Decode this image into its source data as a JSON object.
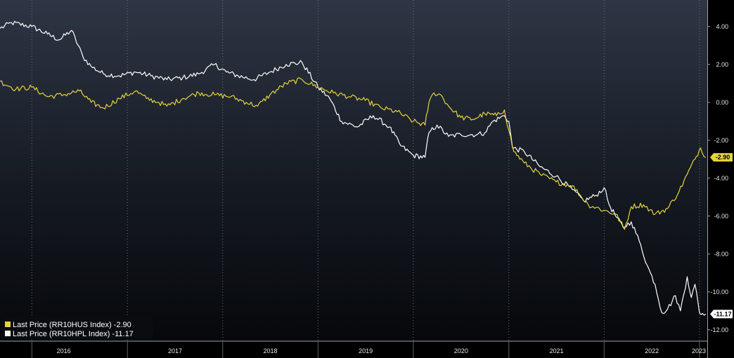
{
  "chart_data": {
    "type": "line",
    "x_axis": {
      "type": "date",
      "range": [
        "2015-09-01",
        "2023-01-31"
      ],
      "tick_labels": [
        "2016",
        "2017",
        "2018",
        "2019",
        "2020",
        "2021",
        "2022",
        "2023"
      ]
    },
    "y_axis": {
      "side": "right",
      "range": [
        -12.6,
        5.4
      ],
      "tick_values": [
        4,
        2,
        0,
        -2,
        -4,
        -6,
        -8,
        -10,
        -12
      ],
      "tick_labels": [
        "4.00",
        "2.00",
        "0.00",
        "-2.00",
        "-4.00",
        "-6.00",
        "-8.00",
        "-10.00",
        "-12.00"
      ]
    },
    "grid": "vertical-dotted",
    "legend": {
      "placement": "bottom-left"
    },
    "series": [
      {
        "name": "Last Price (RR10HUS  Index) -2.90",
        "color": "#e6d33c",
        "last_value_label": "-2.90",
        "points": [
          [
            "2015-09-01",
            1.1
          ],
          [
            "2015-11-01",
            0.7
          ],
          [
            "2016-01-01",
            0.8
          ],
          [
            "2016-03-01",
            0.3
          ],
          [
            "2016-05-01",
            0.4
          ],
          [
            "2016-07-01",
            0.6
          ],
          [
            "2016-08-15",
            0.0
          ],
          [
            "2016-10-01",
            -0.3
          ],
          [
            "2016-12-01",
            0.2
          ],
          [
            "2017-02-01",
            0.6
          ],
          [
            "2017-03-15",
            0.2
          ],
          [
            "2017-05-01",
            0.0
          ],
          [
            "2017-06-01",
            -0.2
          ],
          [
            "2017-08-01",
            0.2
          ],
          [
            "2017-10-01",
            0.5
          ],
          [
            "2017-12-01",
            0.4
          ],
          [
            "2018-02-01",
            0.3
          ],
          [
            "2018-04-01",
            0.0
          ],
          [
            "2018-05-15",
            -0.2
          ],
          [
            "2018-07-01",
            0.4
          ],
          [
            "2018-09-01",
            1.0
          ],
          [
            "2018-11-01",
            1.2
          ],
          [
            "2019-01-01",
            0.8
          ],
          [
            "2019-03-01",
            0.5
          ],
          [
            "2019-05-01",
            0.3
          ],
          [
            "2019-07-01",
            0.1
          ],
          [
            "2019-09-01",
            -0.3
          ],
          [
            "2019-11-01",
            -0.5
          ],
          [
            "2020-01-01",
            -1.0
          ],
          [
            "2020-02-15",
            -1.2
          ],
          [
            "2020-03-01",
            0.0
          ],
          [
            "2020-03-20",
            0.5
          ],
          [
            "2020-04-15",
            0.4
          ],
          [
            "2020-05-15",
            -0.2
          ],
          [
            "2020-07-01",
            -0.8
          ],
          [
            "2020-08-15",
            -0.9
          ],
          [
            "2020-10-01",
            -0.6
          ],
          [
            "2020-11-15",
            -0.7
          ],
          [
            "2020-12-15",
            -0.4
          ],
          [
            "2021-01-01",
            -1.5
          ],
          [
            "2021-01-20",
            -2.6
          ],
          [
            "2021-03-01",
            -3.2
          ],
          [
            "2021-05-01",
            -3.8
          ],
          [
            "2021-07-01",
            -4.2
          ],
          [
            "2021-09-01",
            -4.4
          ],
          [
            "2021-11-01",
            -5.4
          ],
          [
            "2022-01-01",
            -5.7
          ],
          [
            "2022-02-15",
            -5.9
          ],
          [
            "2022-03-20",
            -6.7
          ],
          [
            "2022-04-15",
            -5.5
          ],
          [
            "2022-06-01",
            -5.4
          ],
          [
            "2022-07-15",
            -5.9
          ],
          [
            "2022-09-01",
            -5.6
          ],
          [
            "2022-10-15",
            -4.7
          ],
          [
            "2022-11-15",
            -3.8
          ],
          [
            "2022-12-15",
            -3.0
          ],
          [
            "2023-01-05",
            -2.4
          ],
          [
            "2023-01-25",
            -2.9
          ]
        ]
      },
      {
        "name": "Last Price (RR10HPL  Index) -11.17",
        "color": "#ffffff",
        "last_value_label": "-11.17",
        "points": [
          [
            "2015-09-01",
            3.9
          ],
          [
            "2015-10-15",
            4.2
          ],
          [
            "2016-01-01",
            4.0
          ],
          [
            "2016-03-01",
            3.6
          ],
          [
            "2016-04-15",
            3.3
          ],
          [
            "2016-06-01",
            3.8
          ],
          [
            "2016-07-15",
            2.4
          ],
          [
            "2016-08-15",
            1.9
          ],
          [
            "2016-10-01",
            1.5
          ],
          [
            "2016-12-01",
            1.4
          ],
          [
            "2017-02-01",
            1.6
          ],
          [
            "2017-04-01",
            1.4
          ],
          [
            "2017-06-01",
            1.2
          ],
          [
            "2017-08-01",
            1.3
          ],
          [
            "2017-10-01",
            1.5
          ],
          [
            "2017-12-01",
            2.0
          ],
          [
            "2018-01-15",
            1.6
          ],
          [
            "2018-03-01",
            1.4
          ],
          [
            "2018-05-01",
            1.2
          ],
          [
            "2018-07-01",
            1.6
          ],
          [
            "2018-09-01",
            2.0
          ],
          [
            "2018-11-01",
            2.1
          ],
          [
            "2019-01-01",
            0.8
          ],
          [
            "2019-02-15",
            0.2
          ],
          [
            "2019-04-01",
            -1.0
          ],
          [
            "2019-06-01",
            -1.3
          ],
          [
            "2019-08-01",
            -0.7
          ],
          [
            "2019-10-01",
            -1.3
          ],
          [
            "2019-11-15",
            -2.3
          ],
          [
            "2020-01-01",
            -2.8
          ],
          [
            "2020-02-15",
            -2.9
          ],
          [
            "2020-03-01",
            -1.6
          ],
          [
            "2020-04-01",
            -1.2
          ],
          [
            "2020-05-15",
            -1.8
          ],
          [
            "2020-07-01",
            -1.7
          ],
          [
            "2020-09-01",
            -1.7
          ],
          [
            "2020-10-01",
            -1.6
          ],
          [
            "2020-11-01",
            -1.0
          ],
          [
            "2020-12-15",
            -0.7
          ],
          [
            "2021-01-01",
            -1.0
          ],
          [
            "2021-01-15",
            -2.4
          ],
          [
            "2021-03-01",
            -2.6
          ],
          [
            "2021-05-01",
            -3.4
          ],
          [
            "2021-07-01",
            -3.9
          ],
          [
            "2021-09-01",
            -4.6
          ],
          [
            "2021-10-15",
            -5.2
          ],
          [
            "2021-12-01",
            -4.9
          ],
          [
            "2022-01-01",
            -4.5
          ],
          [
            "2022-01-20",
            -5.4
          ],
          [
            "2022-02-10",
            -5.9
          ],
          [
            "2022-03-15",
            -6.6
          ],
          [
            "2022-04-15",
            -6.3
          ],
          [
            "2022-05-15",
            -7.3
          ],
          [
            "2022-06-15",
            -8.6
          ],
          [
            "2022-07-15",
            -9.6
          ],
          [
            "2022-08-10",
            -11.1
          ],
          [
            "2022-09-01",
            -10.9
          ],
          [
            "2022-10-01",
            -10.2
          ],
          [
            "2022-10-20",
            -11.0
          ],
          [
            "2022-11-15",
            -9.2
          ],
          [
            "2022-12-01",
            -10.3
          ],
          [
            "2022-12-15",
            -9.6
          ],
          [
            "2023-01-01",
            -11.1
          ],
          [
            "2023-01-25",
            -11.17
          ]
        ]
      }
    ]
  }
}
